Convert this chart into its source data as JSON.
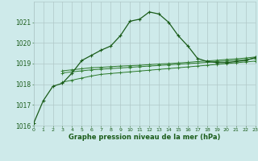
{
  "bg_color": "#ceeaea",
  "grid_color": "#b0c8c8",
  "line_color_main": "#1a5c1a",
  "line_color_flat": "#2d7a2d",
  "xlabel": "Graphe pression niveau de la mer (hPa)",
  "xlabel_color": "#1a5c1a",
  "tick_color": "#1a5c1a",
  "hours": [
    0,
    1,
    2,
    3,
    4,
    5,
    6,
    7,
    8,
    9,
    10,
    11,
    12,
    13,
    14,
    15,
    16,
    17,
    18,
    19,
    20,
    21,
    22,
    23
  ],
  "main_pressure": [
    1016.1,
    1017.2,
    1017.9,
    1018.05,
    1018.55,
    1019.15,
    1019.4,
    1019.65,
    1019.85,
    1020.35,
    1021.05,
    1021.15,
    1021.5,
    1021.4,
    1021.0,
    1020.35,
    1019.85,
    1019.25,
    1019.1,
    1019.05,
    1019.05,
    1019.1,
    1019.15,
    1019.3
  ],
  "flat1_x": [
    3,
    4,
    5,
    6,
    7,
    8,
    9,
    10,
    11,
    12,
    13,
    14,
    15,
    16,
    17,
    18,
    19,
    20,
    21,
    22,
    23
  ],
  "flat1_y": [
    1018.65,
    1018.7,
    1018.75,
    1018.8,
    1018.82,
    1018.85,
    1018.88,
    1018.9,
    1018.92,
    1018.95,
    1018.98,
    1019.0,
    1019.03,
    1019.06,
    1019.1,
    1019.13,
    1019.16,
    1019.2,
    1019.23,
    1019.27,
    1019.32
  ],
  "flat2_x": [
    3,
    4,
    5,
    6,
    7,
    8,
    9,
    10,
    11,
    12,
    13,
    14,
    15,
    16,
    17,
    18,
    19,
    20,
    21,
    22,
    23
  ],
  "flat2_y": [
    1018.55,
    1018.6,
    1018.65,
    1018.7,
    1018.73,
    1018.76,
    1018.79,
    1018.82,
    1018.85,
    1018.88,
    1018.91,
    1018.94,
    1018.97,
    1019.0,
    1019.03,
    1019.06,
    1019.1,
    1019.13,
    1019.16,
    1019.2,
    1019.25
  ],
  "flat3_x": [
    3,
    4,
    5,
    6,
    7,
    8,
    9,
    10,
    11,
    12,
    13,
    14,
    15,
    16,
    17,
    18,
    19,
    20,
    21,
    22,
    23
  ],
  "flat3_y": [
    1018.1,
    1018.2,
    1018.3,
    1018.4,
    1018.48,
    1018.52,
    1018.56,
    1018.6,
    1018.64,
    1018.68,
    1018.72,
    1018.76,
    1018.8,
    1018.84,
    1018.88,
    1018.92,
    1018.96,
    1019.0,
    1019.04,
    1019.08,
    1019.12
  ],
  "ylim_min": 1016.0,
  "ylim_max": 1022.0,
  "yticks": [
    1016,
    1017,
    1018,
    1019,
    1020,
    1021
  ],
  "xlim_min": 0,
  "xlim_max": 23,
  "figsize": [
    3.2,
    2.0
  ],
  "dpi": 100
}
